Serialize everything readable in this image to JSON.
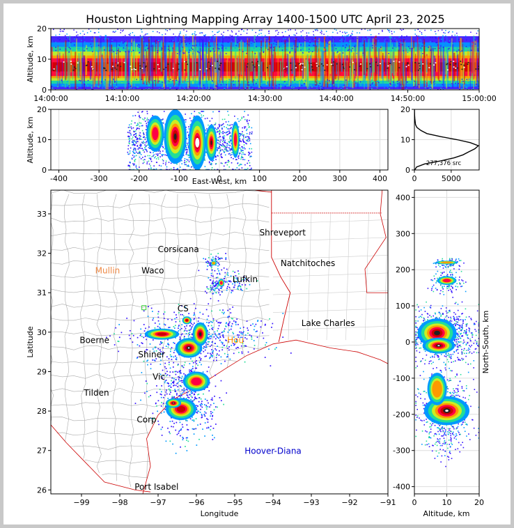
{
  "chart_data": [
    {
      "type": "heatmap",
      "panel": "altitude-time",
      "title": "Houston Lightning Mapping Array 1400-1500 UTC April 23, 2025",
      "ylabel": "Altitude, km",
      "ylim": [
        0,
        20
      ],
      "yticks": [
        "0",
        "10",
        "20"
      ],
      "xticks": [
        "14:00:00",
        "14:10:00",
        "14:20:00",
        "14:30:00",
        "14:40:00",
        "14:50:00",
        "15:00:00"
      ],
      "xlim": [
        "14:00:00",
        "15:00:00"
      ],
      "density_core_altitude_km": [
        3,
        12
      ],
      "density_peak_altitude_km": 8
    },
    {
      "type": "heatmap",
      "panel": "altitude-east-west",
      "xlabel": "East-West, km",
      "ylabel": "Altitude, km",
      "xlim": [
        -420,
        420
      ],
      "ylim": [
        0,
        20
      ],
      "xticks": [
        "-400",
        "-300",
        "-200",
        "-100",
        "0",
        "100",
        "200",
        "300",
        "400"
      ],
      "yticks": [
        "0",
        "10",
        "20"
      ],
      "sources_x_range_km": [
        -240,
        80
      ]
    },
    {
      "type": "line",
      "panel": "altitude-histogram",
      "xticks": [
        "0",
        "5000"
      ],
      "yticks": [
        "0",
        "10",
        "20"
      ],
      "xlim": [
        0,
        8800
      ],
      "ylim": [
        0,
        20
      ],
      "annotation": "277,376 src",
      "altitude": [
        0,
        1,
        2,
        3,
        4,
        5,
        6,
        7,
        8,
        9,
        10,
        11,
        12,
        13,
        14,
        15,
        16,
        17,
        18,
        19,
        20
      ],
      "counts": [
        40,
        300,
        1400,
        3600,
        5400,
        6600,
        7400,
        8200,
        8700,
        7600,
        5800,
        3600,
        1700,
        900,
        350,
        150,
        100,
        60,
        30,
        15,
        5
      ]
    },
    {
      "type": "heatmap",
      "panel": "plan-view-map",
      "xlabel": "Longitude",
      "ylabel": "Latitude",
      "xlim": [
        -99.8,
        -91
      ],
      "ylim": [
        25.9,
        33.6
      ],
      "xticks": [
        "−99",
        "−98",
        "−97",
        "−96",
        "−95",
        "−94",
        "−93",
        "−92",
        "−91"
      ],
      "yticks": [
        "26",
        "27",
        "28",
        "29",
        "30",
        "31",
        "32",
        "33"
      ],
      "cities": [
        {
          "name": "Shreveport",
          "lon": -93.75,
          "lat": 32.52,
          "color": "#000000"
        },
        {
          "name": "Corsicana",
          "lon": -96.47,
          "lat": 32.1,
          "color": "#000000"
        },
        {
          "name": "Natchitoches",
          "lon": -93.09,
          "lat": 31.75,
          "color": "#000000"
        },
        {
          "name": "Mullin",
          "lon": -98.32,
          "lat": 31.56,
          "color": "#ee8844"
        },
        {
          "name": "Waco",
          "lon": -97.14,
          "lat": 31.56,
          "color": "#000000"
        },
        {
          "name": "Lufkin",
          "lon": -94.73,
          "lat": 31.34,
          "color": "#000000"
        },
        {
          "name": "CS",
          "lon": -96.35,
          "lat": 30.6,
          "color": "#000000"
        },
        {
          "name": "Lake Charles",
          "lon": -92.56,
          "lat": 30.23,
          "color": "#000000"
        },
        {
          "name": "Boerne",
          "lon": -98.66,
          "lat": 29.79,
          "color": "#000000"
        },
        {
          "name": "Hou",
          "lon": -94.98,
          "lat": 29.79,
          "color": "#ff9900"
        },
        {
          "name": "Shiner",
          "lon": -97.17,
          "lat": 29.43,
          "color": "#000000"
        },
        {
          "name": "Vic",
          "lon": -96.98,
          "lat": 28.87,
          "color": "#000000"
        },
        {
          "name": "Tilden",
          "lon": -98.61,
          "lat": 28.46,
          "color": "#000000"
        },
        {
          "name": "Corp",
          "lon": -97.3,
          "lat": 27.78,
          "color": "#000000"
        },
        {
          "name": "Hoover-Diana",
          "lon": -94.0,
          "lat": 26.99,
          "color": "#0000cc"
        },
        {
          "name": "Port Isabel",
          "lon": -97.04,
          "lat": 26.08,
          "color": "#000000"
        }
      ],
      "storm_cells": [
        {
          "lon": -96.9,
          "lat": 29.95
        },
        {
          "lon": -96.2,
          "lat": 29.6
        },
        {
          "lon": -95.9,
          "lat": 29.95
        },
        {
          "lon": -96.3,
          "lat": 28.25
        }
      ]
    },
    {
      "type": "heatmap",
      "panel": "north-south-altitude",
      "xlabel": "Altitude, km",
      "ylabel": "North-South, km",
      "xlim": [
        0,
        20
      ],
      "ylim": [
        -420,
        420
      ],
      "xticks": [
        "0",
        "10",
        "20"
      ],
      "yticks": [
        "400",
        "300",
        "200",
        "100",
        "0",
        "-100",
        "-200",
        "-300",
        "-400"
      ]
    }
  ],
  "colors": {
    "density_scale": [
      "#3311ff",
      "#0099ff",
      "#22dd99",
      "#ccee22",
      "#ff9900",
      "#ff0044",
      "#cc0000",
      "#222222",
      "#ffffff"
    ],
    "state_border": "#cc0000",
    "county_border": "#aaaaaa"
  }
}
